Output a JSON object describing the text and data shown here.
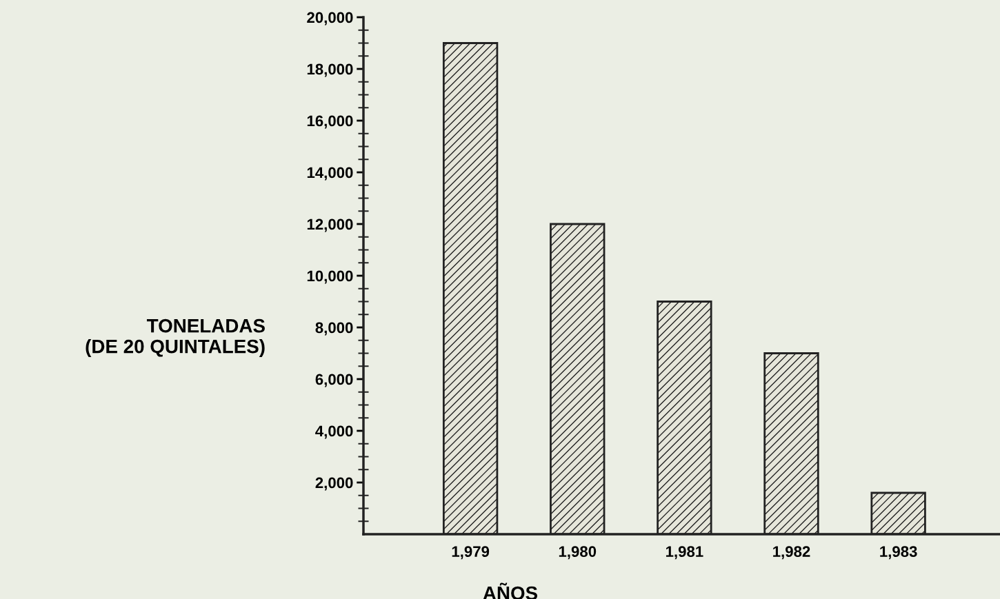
{
  "chart_data": {
    "type": "bar",
    "xlabel": "AÑOS",
    "ylabel": "TONELADAS\n(DE 20 QUINTALES)",
    "categories": [
      "1,979",
      "1,980",
      "1,981",
      "1,982",
      "1,983"
    ],
    "values": [
      19000,
      12000,
      9000,
      7000,
      1600
    ],
    "color": "#e6e6da",
    "ylim": [
      0,
      20000
    ],
    "yticks": [
      {
        "value": 2000,
        "label": "2,000"
      },
      {
        "value": 4000,
        "label": "4,000"
      },
      {
        "value": 6000,
        "label": "6,000"
      },
      {
        "value": 8000,
        "label": "8,000"
      },
      {
        "value": 10000,
        "label": "10,000"
      },
      {
        "value": 12000,
        "label": "12,000"
      },
      {
        "value": 14000,
        "label": "14,000"
      },
      {
        "value": 16000,
        "label": "16,000"
      },
      {
        "value": 18000,
        "label": "18,000"
      },
      {
        "value": 20000,
        "label": "20,000"
      }
    ],
    "grid": false,
    "legend": false
  }
}
